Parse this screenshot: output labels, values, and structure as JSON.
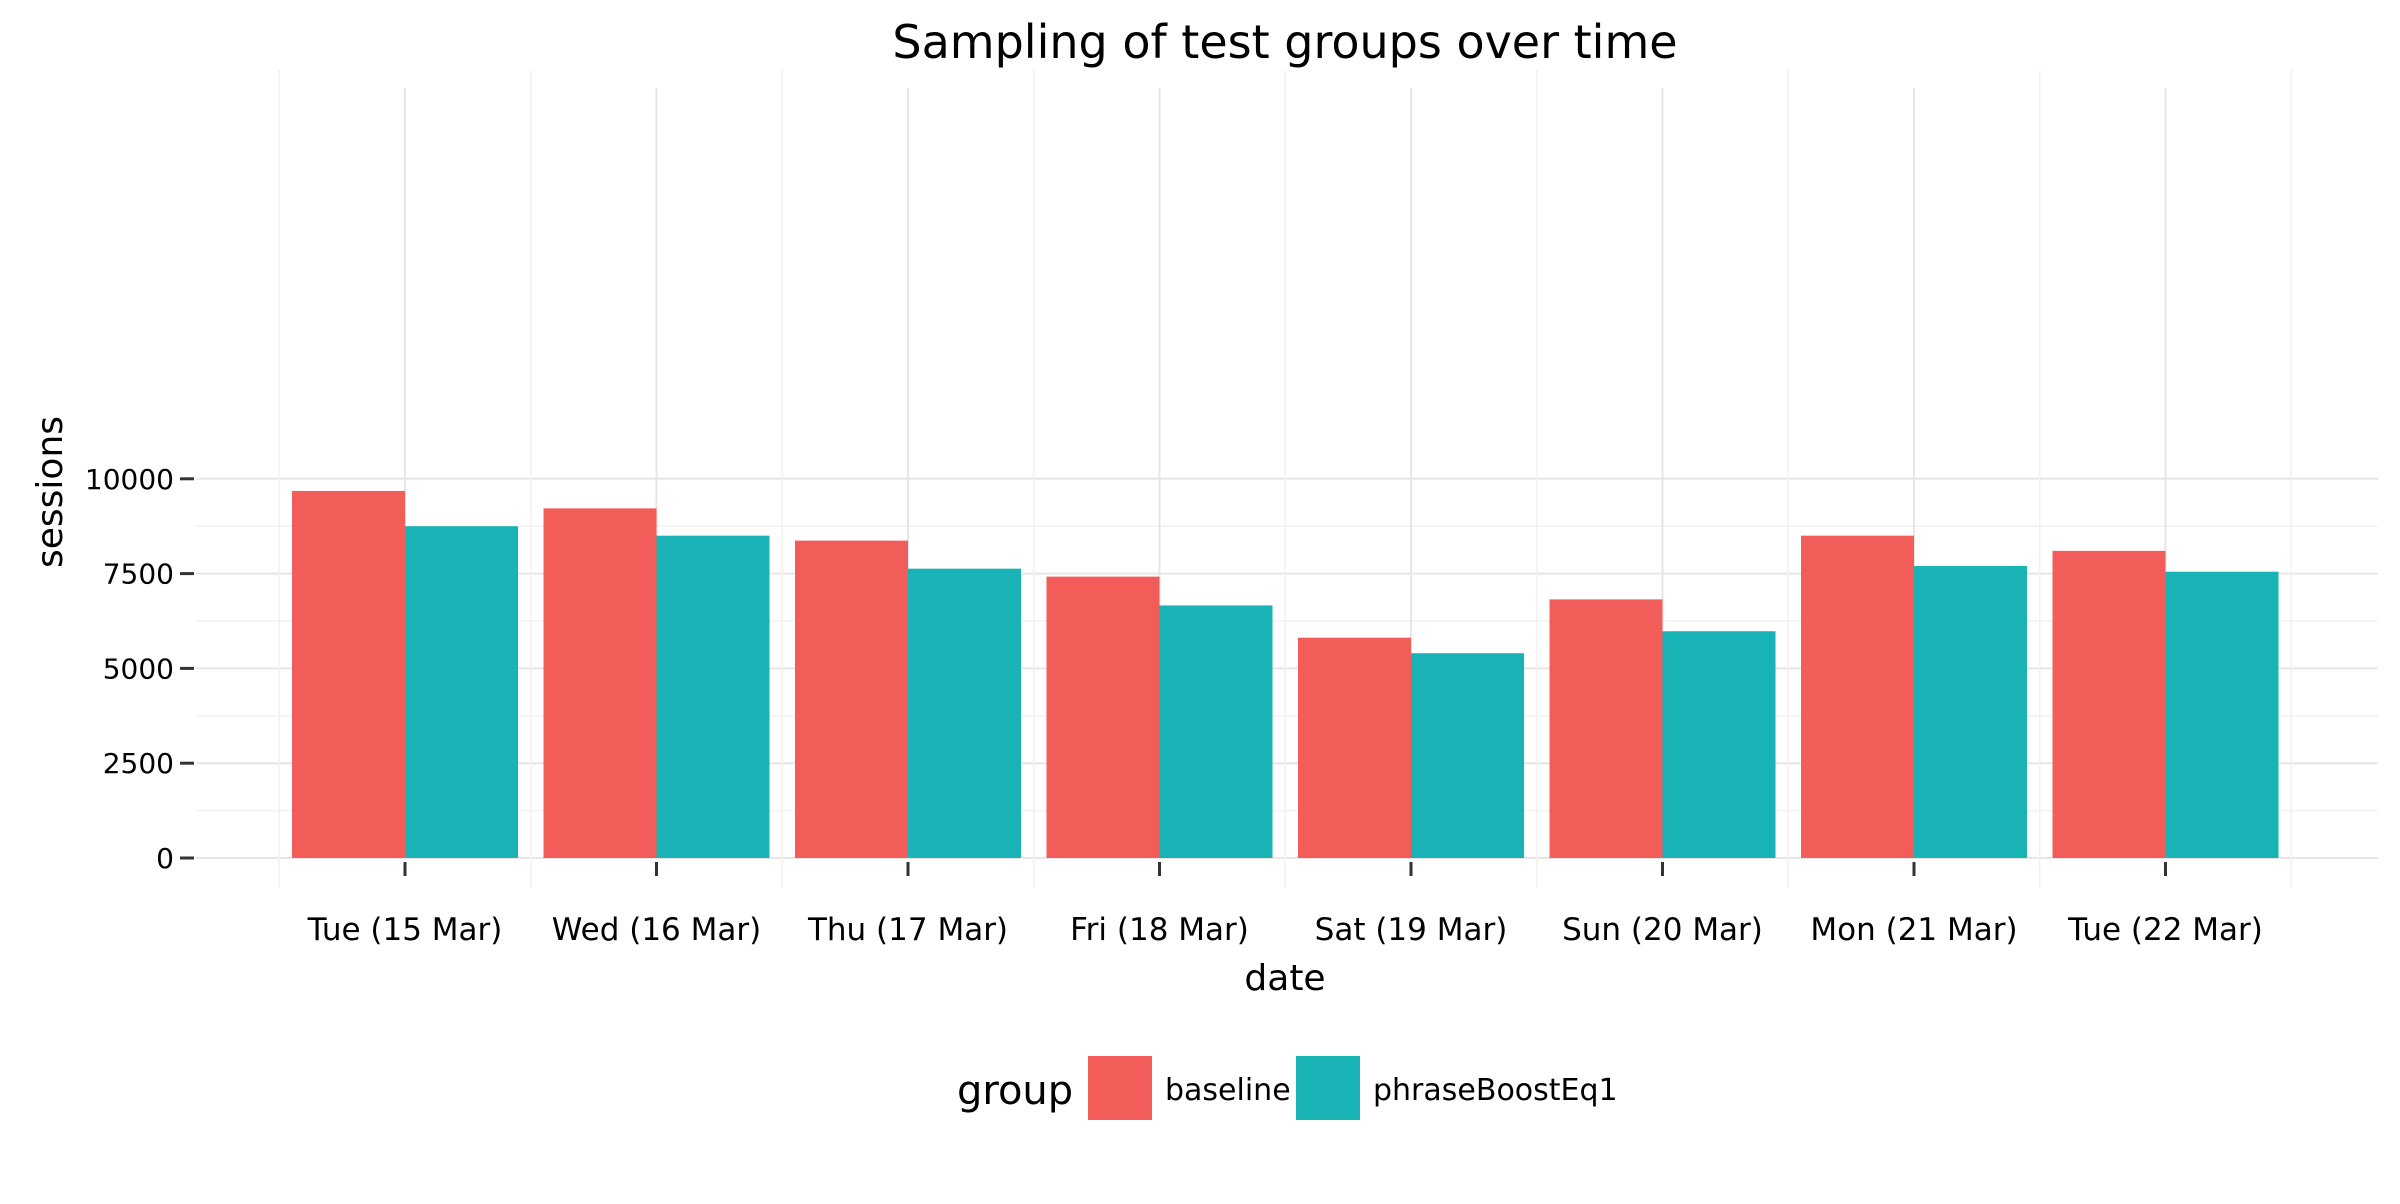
{
  "chart_data": {
    "type": "bar",
    "title": "Sampling of test groups over time",
    "xlabel": "date",
    "ylabel": "sessions",
    "ylim": [
      0,
      10150
    ],
    "yticks": [
      0,
      2500,
      5000,
      7500,
      10000
    ],
    "ytick_labels": [
      "0",
      "2500",
      "5000",
      "7500",
      "10000"
    ],
    "grid": true,
    "legend_position": "bottom",
    "categories": [
      "Tue (15 Mar)",
      "Wed (16 Mar)",
      "Thu (17 Mar)",
      "Fri (18 Mar)",
      "Sat (19 Mar)",
      "Sun (20 Mar)",
      "Mon (21 Mar)",
      "Tue (22 Mar)"
    ],
    "legend_title": "group",
    "series": [
      {
        "name": "baseline",
        "color": "#F25D5A",
        "values": [
          9680,
          9220,
          8370,
          7420,
          5810,
          6820,
          8500,
          8100
        ]
      },
      {
        "name": "phraseBoostEq1",
        "color": "#19B3B5",
        "values": [
          8750,
          8500,
          7630,
          6660,
          5400,
          5980,
          7700,
          7550
        ]
      }
    ]
  }
}
